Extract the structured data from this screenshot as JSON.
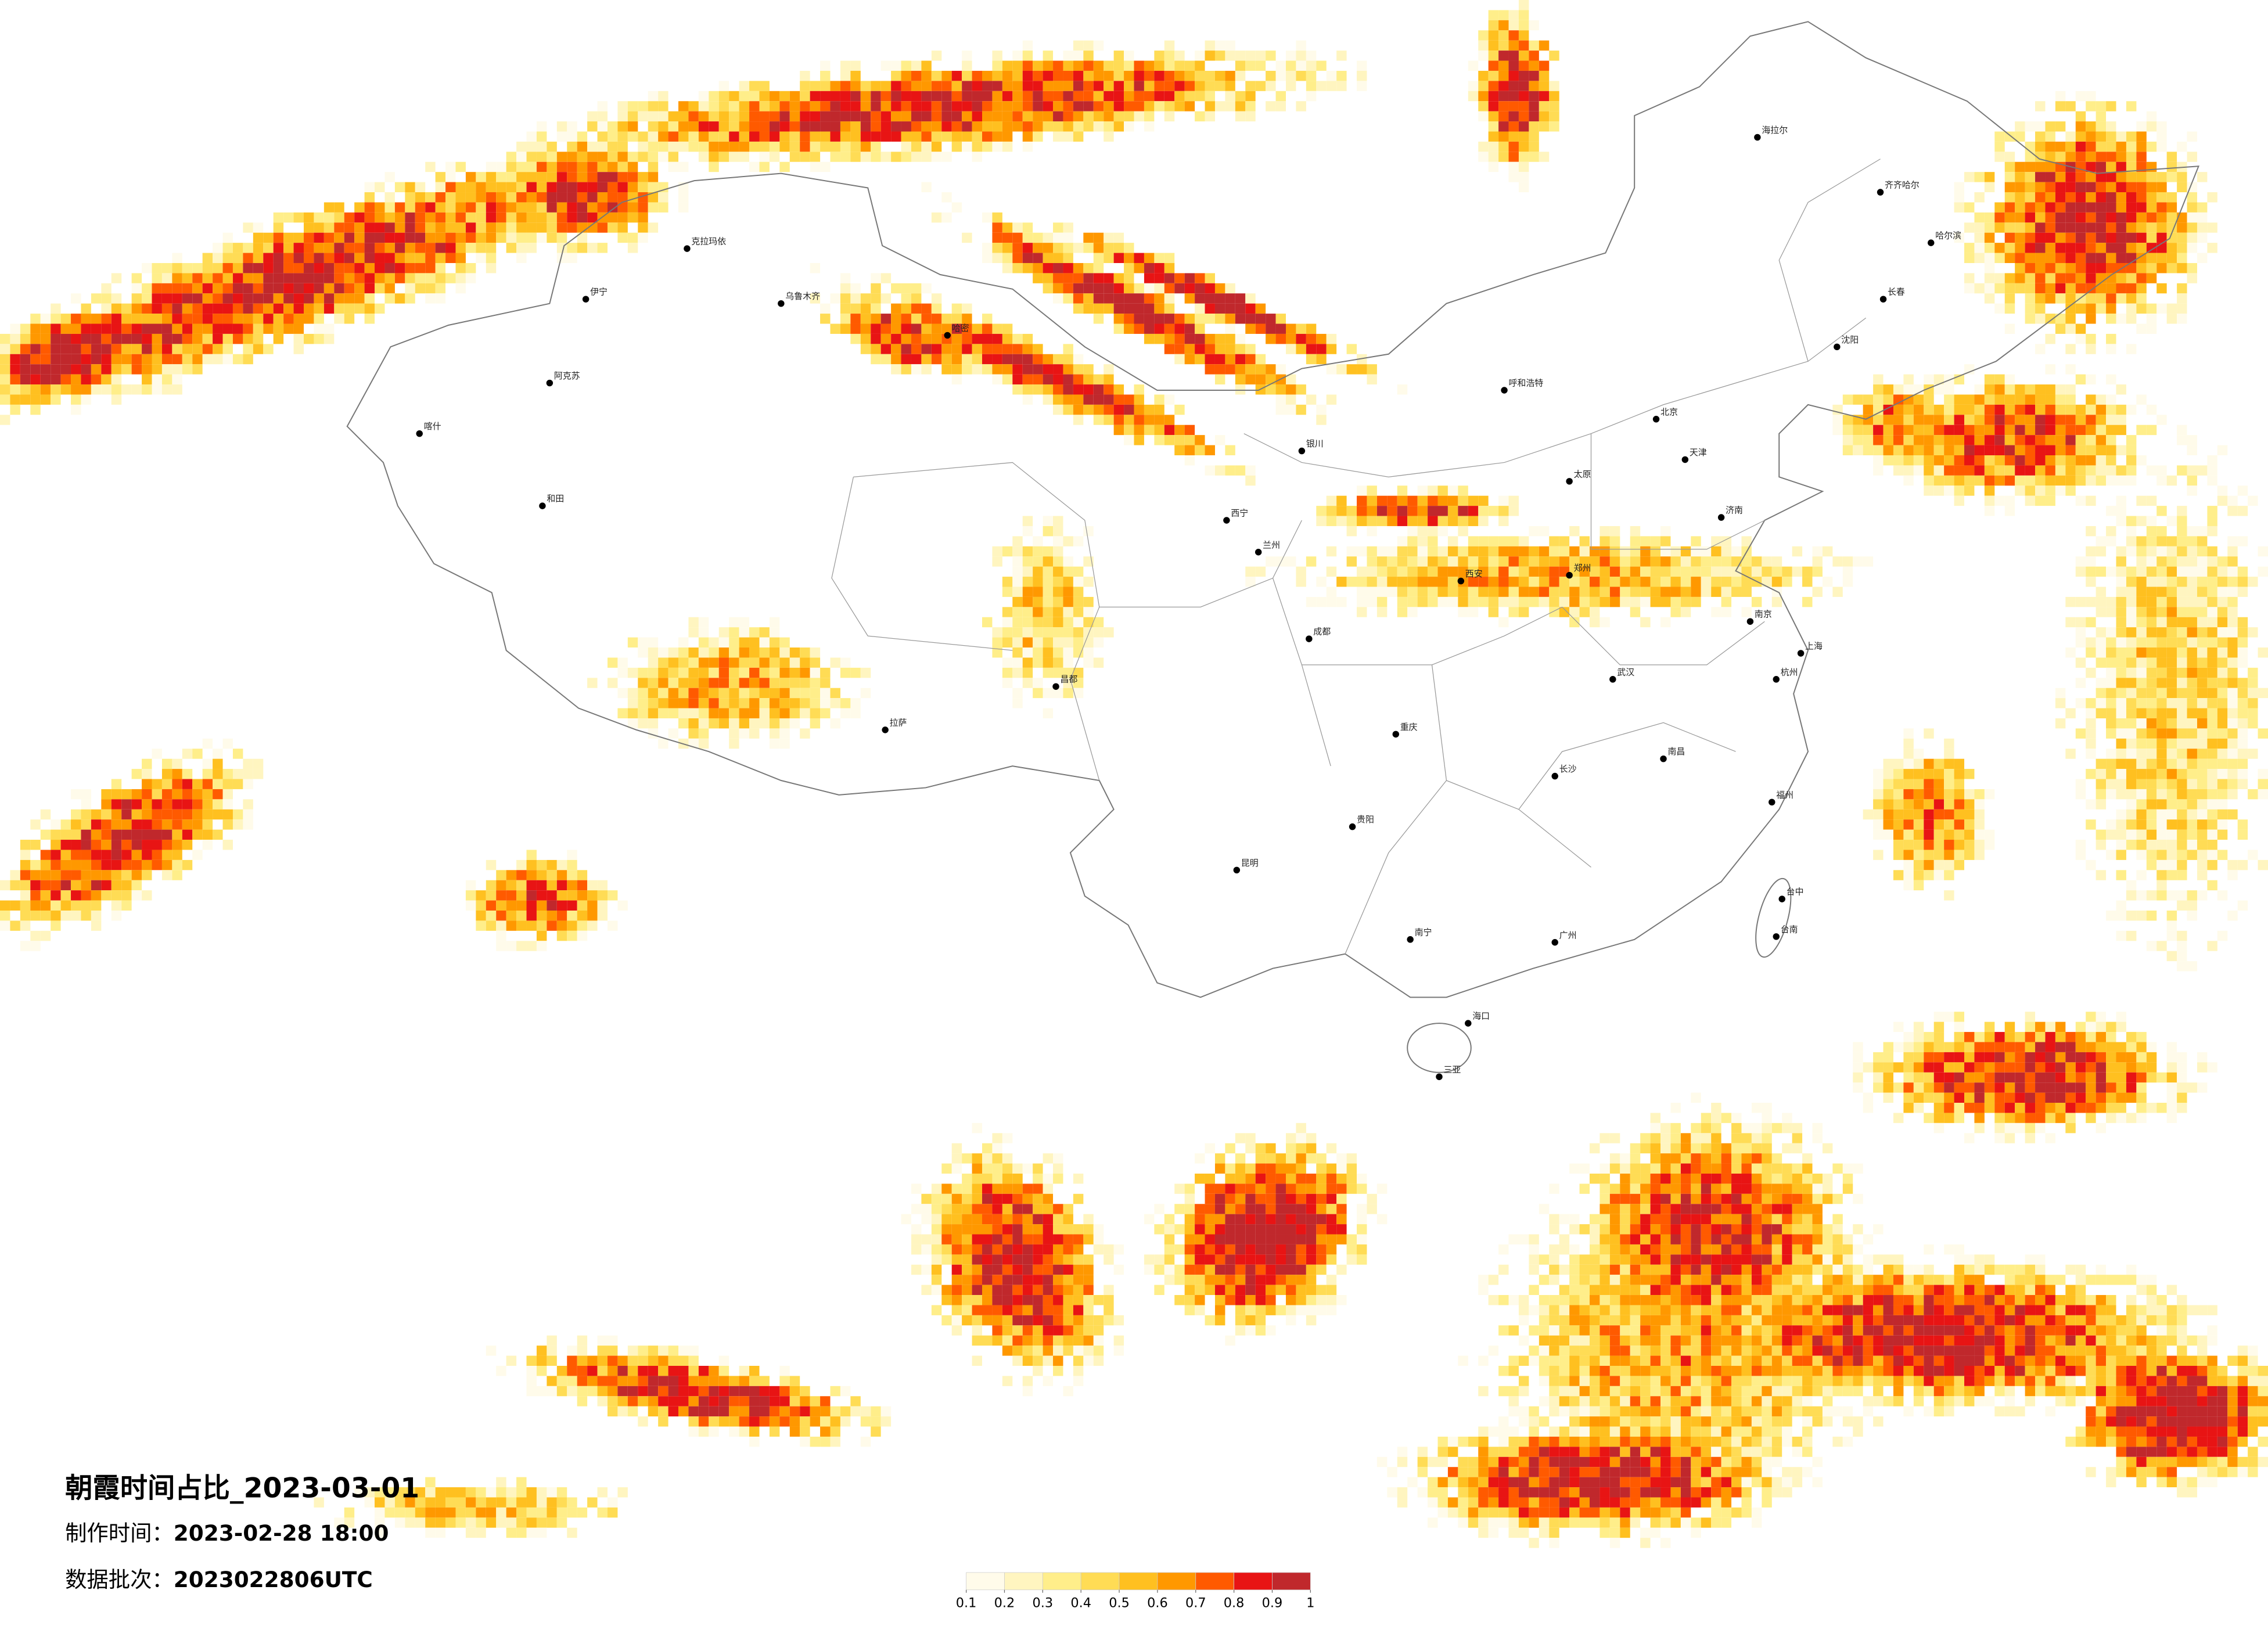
{
  "title": "朝霞时间占比_2023-03-01",
  "made_label": "制作时间：",
  "made_time": "2023-02-28 18:00",
  "batch_label": "数据批次：",
  "batch": "2023022806UTC",
  "colorbar": {
    "ticks": [
      0.1,
      0.2,
      0.3,
      0.4,
      0.5,
      0.6,
      0.7,
      0.8,
      0.9,
      1
    ],
    "colors": [
      "#fffbea",
      "#fff5c0",
      "#ffee8a",
      "#ffdc55",
      "#ffc020",
      "#ff9800",
      "#ff5a00",
      "#e81414",
      "#c0282c"
    ]
  },
  "cities": [
    "克拉玛依",
    "伊宁",
    "乌鲁木齐",
    "阿克苏",
    "和田",
    "喀什",
    "哈密",
    "拉萨",
    "昌都",
    "西宁",
    "兰州",
    "银川",
    "呼和浩特",
    "海拉尔",
    "齐齐哈尔",
    "哈尔滨",
    "长春",
    "沈阳",
    "北京",
    "天津",
    "太原",
    "济南",
    "郑州",
    "西安",
    "南京",
    "上海",
    "杭州",
    "武汉",
    "长沙",
    "南昌",
    "福州",
    "广州",
    "南宁",
    "昆明",
    "贵阳",
    "重庆",
    "成都",
    "海口",
    "三亚",
    "台中",
    "台南"
  ]
}
